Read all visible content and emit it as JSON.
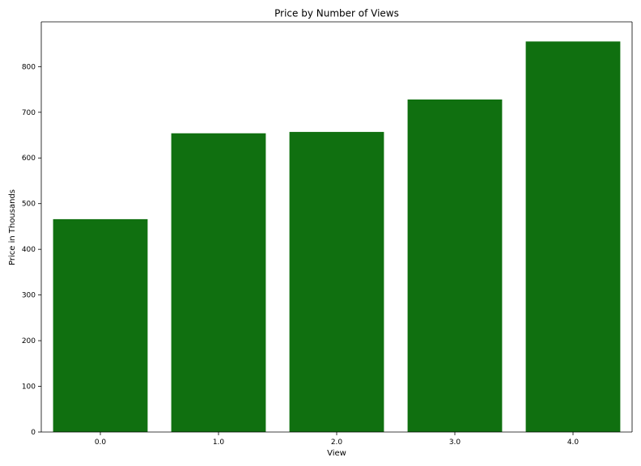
{
  "chart_data": {
    "type": "bar",
    "title": "Price by Number of Views",
    "xlabel": "View",
    "ylabel": "Price in Thousands",
    "categories": [
      "0.0",
      "1.0",
      "2.0",
      "3.0",
      "4.0"
    ],
    "values": [
      466,
      654,
      657,
      728,
      855
    ],
    "ylim": [
      0,
      898
    ],
    "yticks": [
      0,
      100,
      200,
      300,
      400,
      500,
      600,
      700,
      800
    ],
    "bar_color": "#107010",
    "grid": false,
    "legend": "none"
  }
}
